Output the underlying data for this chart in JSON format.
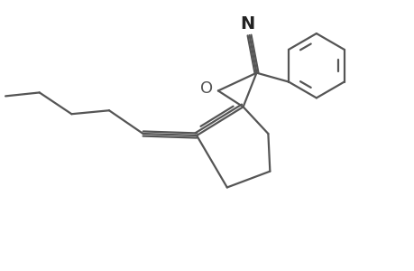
{
  "bg_color": "#ffffff",
  "line_color": "#555555",
  "line_width": 1.6,
  "font_size": 14,
  "label_N": "N",
  "label_O": "O",
  "xlim": [
    0,
    4.6
  ],
  "ylim": [
    0,
    3.0
  ],
  "figsize": [
    4.6,
    3.0
  ],
  "dpi": 100
}
